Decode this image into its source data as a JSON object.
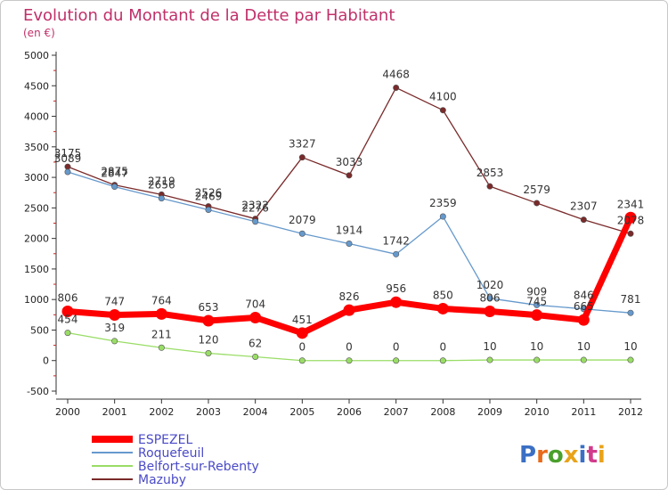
{
  "chart_data": {
    "type": "line",
    "title": "Evolution du Montant de la Dette par Habitant",
    "subtitle": "(en €)",
    "x": [
      "2000",
      "2001",
      "2002",
      "2003",
      "2004",
      "2005",
      "2006",
      "2007",
      "2008",
      "2009",
      "2010",
      "2011",
      "2012"
    ],
    "y_ticks": [
      "5000",
      "4500",
      "4000",
      "3500",
      "3000",
      "2500",
      "2000",
      "1500",
      "1000",
      "500",
      "0",
      "-500"
    ],
    "ylim": [
      -500,
      5000
    ],
    "grid": false,
    "legend_position": "bottom-left",
    "series": [
      {
        "name": "ESPEZEL",
        "color": "#ff0000",
        "values": [
          806,
          747,
          764,
          653,
          704,
          451,
          826,
          956,
          850,
          806,
          745,
          665,
          2341
        ],
        "labels": [
          "806",
          "747",
          "764",
          "653",
          "704",
          "451",
          "826",
          "956",
          "850",
          "",
          "",
          "",
          ""
        ]
      },
      {
        "name": "Roquefeuil",
        "color": "#6699cc",
        "values": [
          3089,
          2847,
          2656,
          2469,
          2276,
          2079,
          1914,
          1742,
          2359,
          1020,
          909,
          846,
          781
        ],
        "labels": [
          "3089",
          "2847",
          "2656",
          "2469",
          "2276",
          "2079",
          "1914",
          "1742",
          "2359",
          "1020",
          "909",
          "846",
          "781"
        ]
      },
      {
        "name": "Belfort-sur-Rebenty",
        "color": "#99dd66",
        "values": [
          454,
          319,
          211,
          120,
          62,
          0,
          0,
          0,
          0,
          10,
          10,
          10,
          10
        ],
        "labels": [
          "454",
          "319",
          "211",
          "120",
          "62",
          "0",
          "0",
          "0",
          "0",
          "10",
          "10",
          "10",
          "10"
        ]
      },
      {
        "name": "Mazuby",
        "color": "#7a2a2a",
        "values": [
          3175,
          2875,
          2719,
          2526,
          2322,
          3327,
          3033,
          4468,
          4100,
          2853,
          2579,
          2307,
          2078
        ],
        "labels": [
          "3175",
          "2875",
          "2719",
          "2526",
          "2322",
          "3327",
          "3033",
          "4468",
          "4100",
          "2853",
          "2579",
          "2307",
          "2078"
        ]
      }
    ]
  },
  "extra_labels": [
    {
      "text": "806",
      "series": 0,
      "index": 9
    },
    {
      "text": "745",
      "series": 0,
      "index": 10
    },
    {
      "text": "665",
      "series": 0,
      "index": 11
    },
    {
      "text": "2341",
      "series": 0,
      "index": 12
    }
  ],
  "brand": {
    "text": "Proxiti",
    "letter_colors": [
      "#3a6fc4",
      "#e86a1a",
      "#4aa02c",
      "#e8a31a",
      "#3a6fc4",
      "#d23a8c",
      "#e8a31a"
    ]
  },
  "colors": {
    "title": "#c0306a",
    "legend_text": "#4a4ac8",
    "axis": "#333333",
    "tick_mark": "#cc2222"
  }
}
